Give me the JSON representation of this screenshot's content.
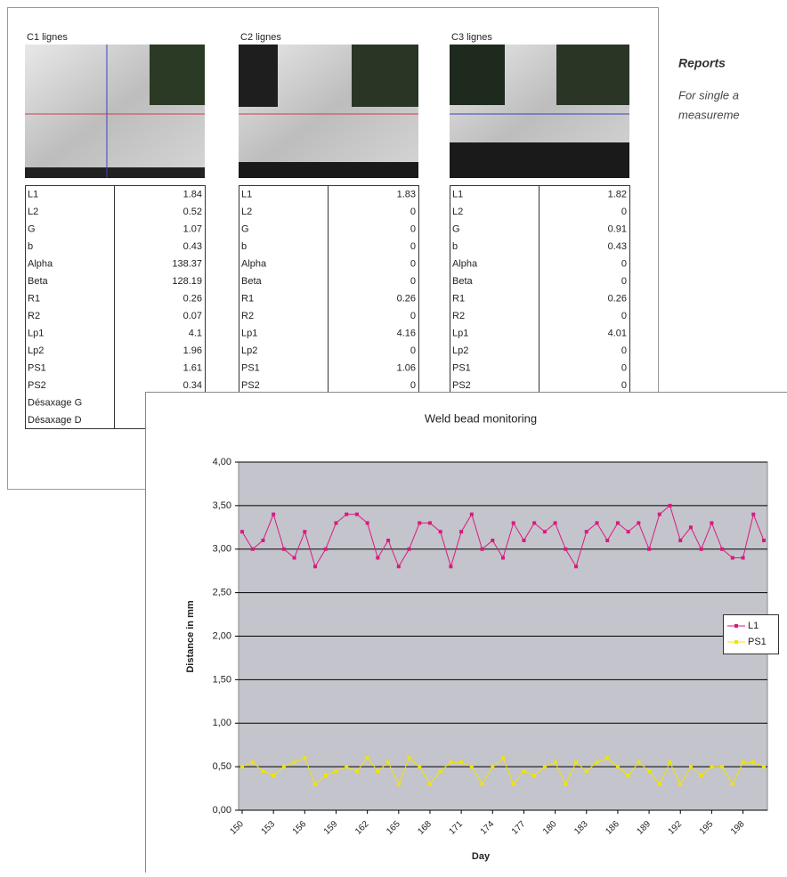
{
  "panels": [
    {
      "title": "C1 lignes",
      "rows": [
        [
          "L1",
          1.84
        ],
        [
          "L2",
          0.52
        ],
        [
          "G",
          1.07
        ],
        [
          "b",
          0.43
        ],
        [
          "Alpha",
          138.37
        ],
        [
          "Beta",
          128.19
        ],
        [
          "R1",
          0.26
        ],
        [
          "R2",
          0.07
        ],
        [
          "Lp1",
          4.1
        ],
        [
          "Lp2",
          1.96
        ],
        [
          "PS1",
          1.61
        ],
        [
          "PS2",
          0.34
        ],
        [
          "Désaxage G"
        ],
        [
          "Désaxage D"
        ]
      ]
    },
    {
      "title": "C2 lignes",
      "rows": [
        [
          "L1",
          1.83
        ],
        [
          "L2",
          0
        ],
        [
          "G",
          0
        ],
        [
          "b",
          0
        ],
        [
          "Alpha",
          0
        ],
        [
          "Beta",
          0
        ],
        [
          "R1",
          0.26
        ],
        [
          "R2",
          0
        ],
        [
          "Lp1",
          4.16
        ],
        [
          "Lp2",
          0
        ],
        [
          "PS1",
          1.06
        ],
        [
          "PS2",
          0
        ]
      ]
    },
    {
      "title": "C3 lignes",
      "rows": [
        [
          "L1",
          1.82
        ],
        [
          "L2",
          0
        ],
        [
          "G",
          0.91
        ],
        [
          "b",
          0.43
        ],
        [
          "Alpha",
          0
        ],
        [
          "Beta",
          0
        ],
        [
          "R1",
          0.26
        ],
        [
          "R2",
          0
        ],
        [
          "Lp1",
          4.01
        ],
        [
          "Lp2",
          0
        ],
        [
          "PS1",
          0
        ],
        [
          "PS2",
          0
        ]
      ]
    }
  ],
  "sidebar": {
    "title": "Reports",
    "lines": [
      "For single a",
      "measureme"
    ]
  },
  "chart_data": {
    "type": "line",
    "title": "Weld bead monitoring",
    "x_label": "Day",
    "y_label": "Distance in mm",
    "categories": [
      150,
      null,
      null,
      153,
      null,
      null,
      156,
      null,
      null,
      159,
      null,
      null,
      162,
      null,
      null,
      165,
      null,
      null,
      168,
      null,
      null,
      171,
      null,
      null,
      174,
      null,
      null,
      177,
      null,
      null,
      180,
      null,
      null,
      183,
      null,
      null,
      186,
      null,
      null,
      189,
      null,
      null,
      192,
      null,
      null,
      195,
      null,
      null,
      198,
      null,
      null
    ],
    "series": [
      {
        "name": "L1",
        "color": "#d81b7d",
        "values": [
          3.2,
          3.0,
          3.1,
          3.4,
          3.0,
          2.9,
          3.2,
          2.8,
          3.0,
          3.3,
          3.4,
          3.4,
          3.3,
          2.9,
          3.1,
          2.8,
          3.0,
          3.3,
          3.3,
          3.2,
          2.8,
          3.2,
          3.4,
          3.0,
          3.1,
          2.9,
          3.3,
          3.1,
          3.3,
          3.2,
          3.3,
          3.0,
          2.8,
          3.2,
          3.3,
          3.1,
          3.3,
          3.2,
          3.3,
          3.0,
          3.4,
          3.5,
          3.1,
          3.25,
          3.0,
          3.3,
          3.0,
          2.9,
          2.9,
          3.4,
          3.1
        ]
      },
      {
        "name": "PS1",
        "color": "#f0e400",
        "values": [
          0.5,
          0.55,
          0.45,
          0.4,
          0.5,
          0.55,
          0.6,
          0.3,
          0.4,
          0.45,
          0.5,
          0.45,
          0.6,
          0.45,
          0.55,
          0.3,
          0.6,
          0.5,
          0.3,
          0.45,
          0.55,
          0.55,
          0.5,
          0.3,
          0.5,
          0.6,
          0.3,
          0.45,
          0.4,
          0.5,
          0.55,
          0.3,
          0.55,
          0.45,
          0.55,
          0.6,
          0.5,
          0.4,
          0.55,
          0.45,
          0.3,
          0.55,
          0.3,
          0.5,
          0.4,
          0.5,
          0.5,
          0.3,
          0.55,
          0.55,
          0.5
        ]
      }
    ],
    "ylim": [
      0,
      4
    ],
    "yticks": [
      {
        "value": 0,
        "label": "0,00"
      },
      {
        "value": 0.5,
        "label": "0,50"
      },
      {
        "value": 1,
        "label": "1,00"
      },
      {
        "value": 1.5,
        "label": "1,50"
      },
      {
        "value": 2,
        "label": "2,00"
      },
      {
        "value": 2.5,
        "label": "2,50"
      },
      {
        "value": 3,
        "label": "3,00"
      },
      {
        "value": 3.5,
        "label": "3,50"
      },
      {
        "value": 4,
        "label": "4,00"
      }
    ],
    "grid": true,
    "legend": "right"
  }
}
